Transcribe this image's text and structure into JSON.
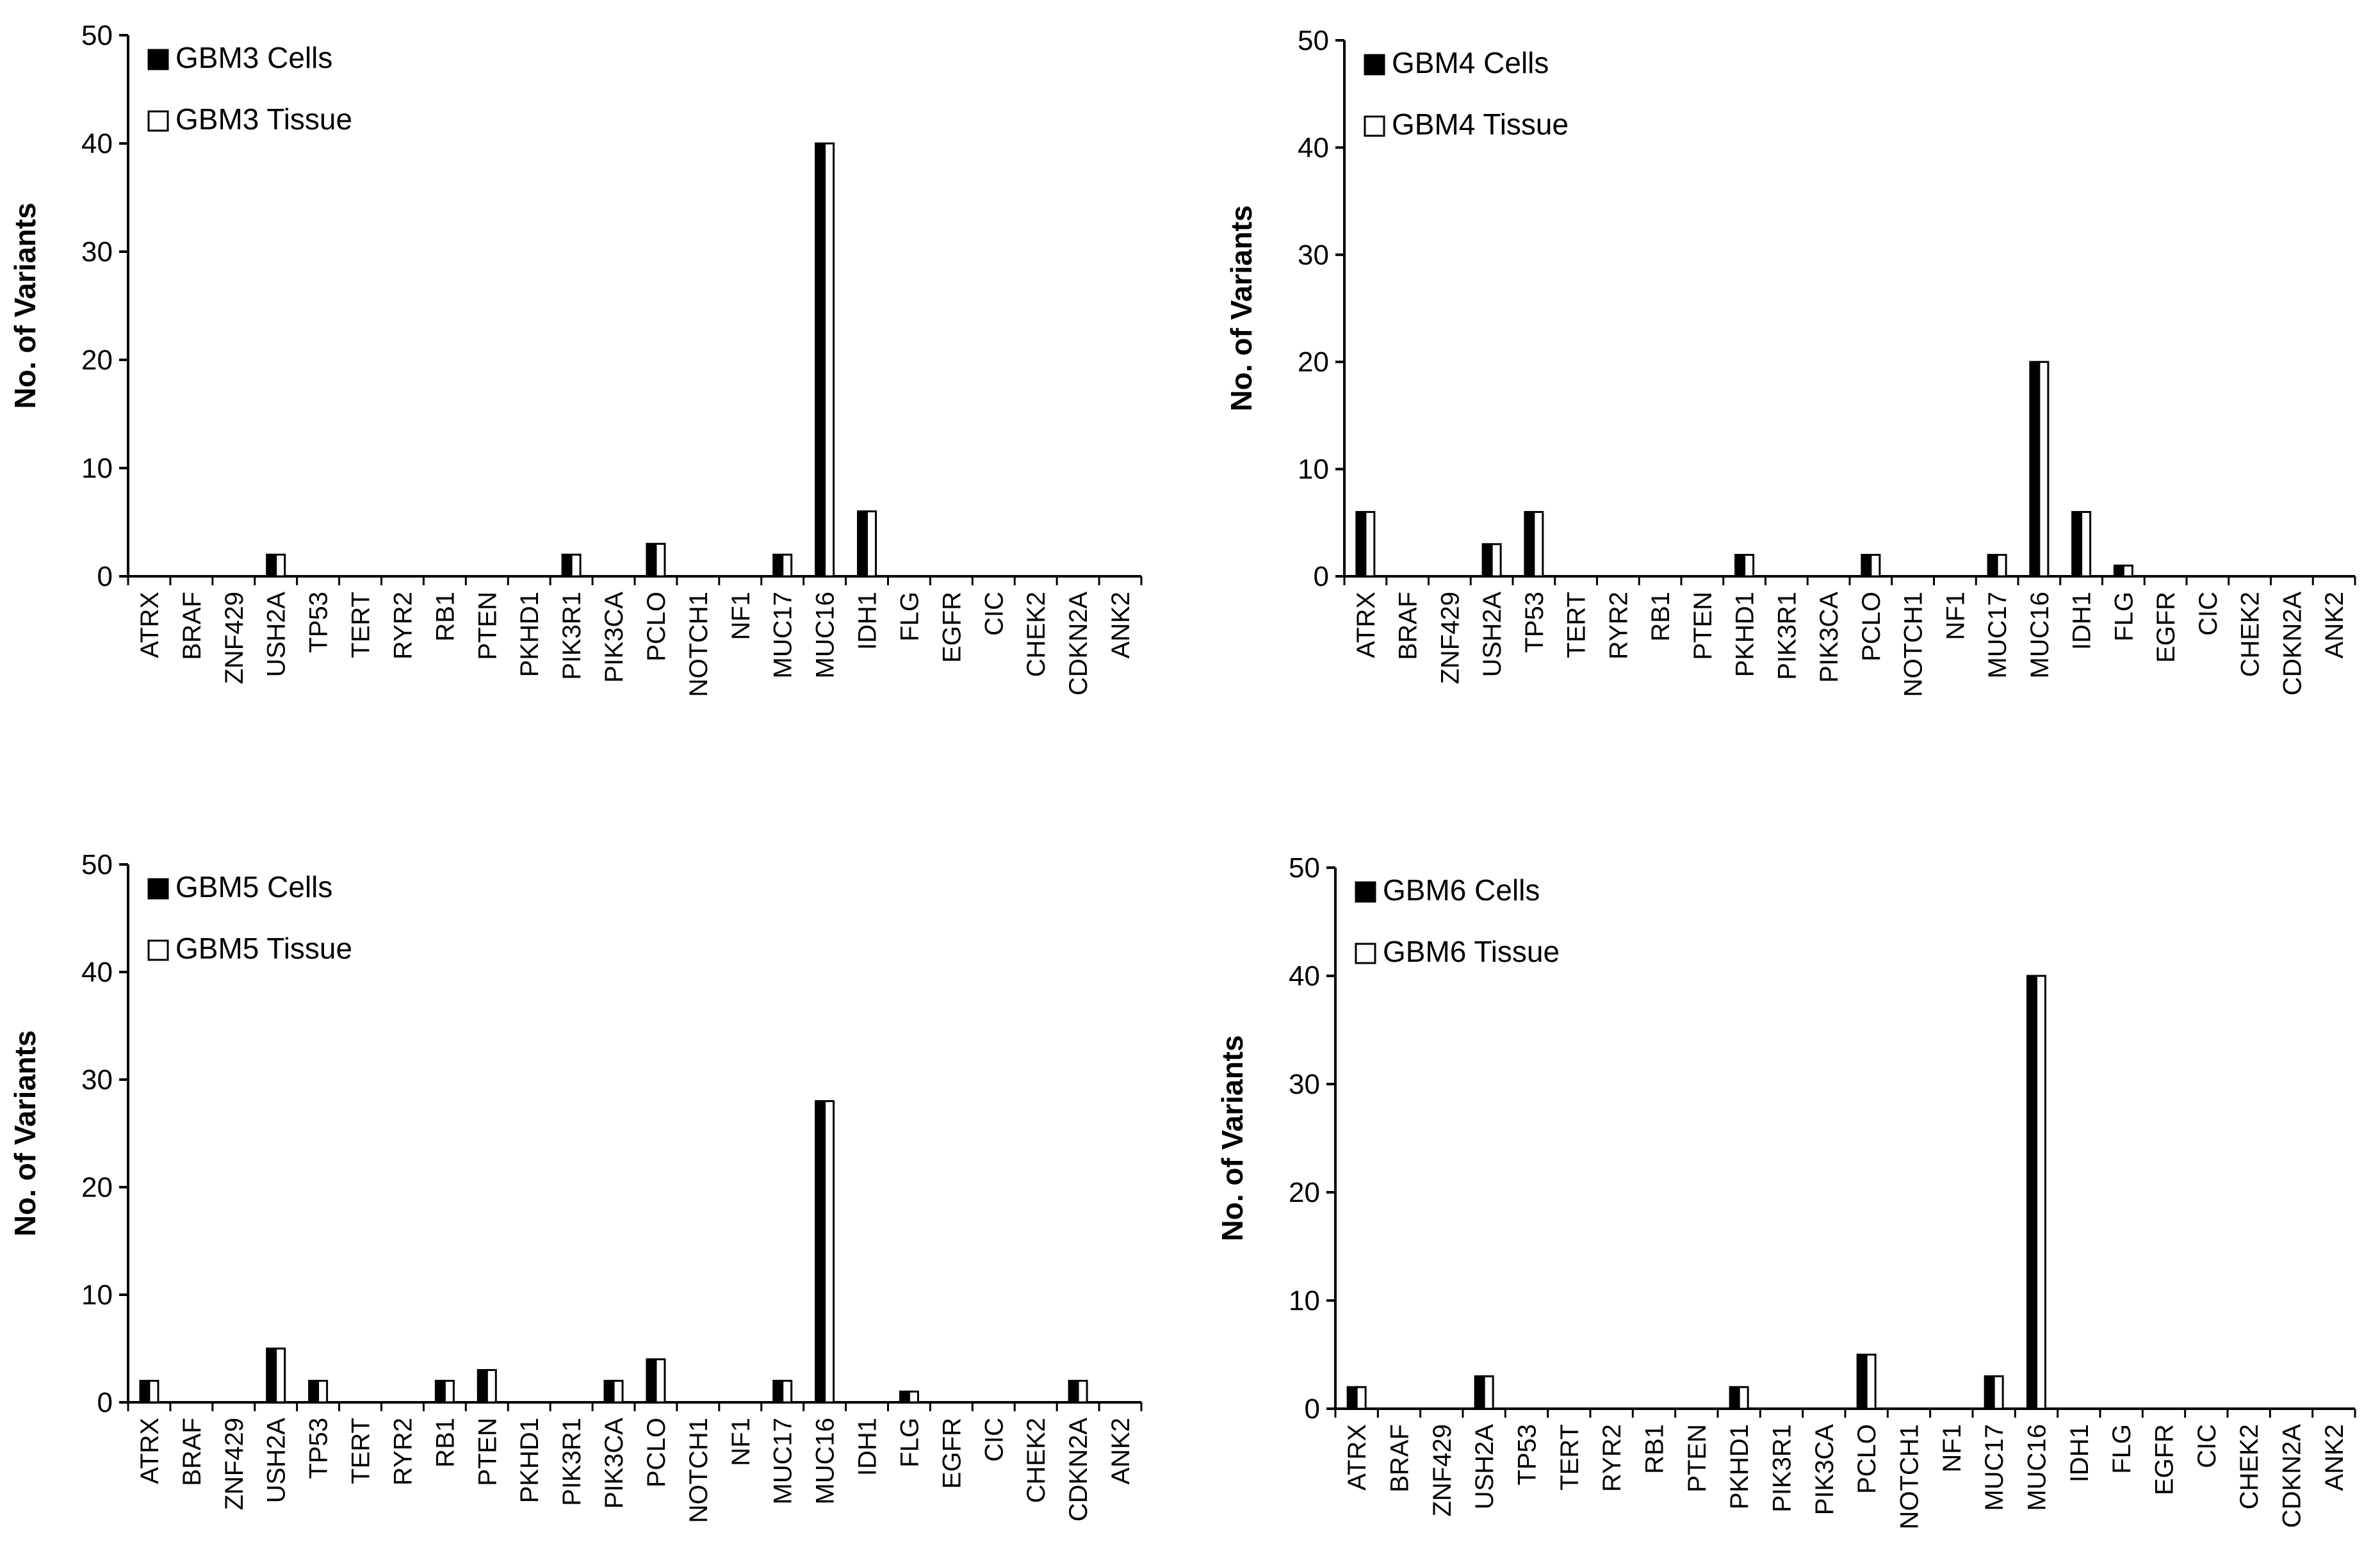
{
  "chart_data": [
    {
      "type": "bar",
      "title": "",
      "xlabel": "",
      "ylabel": "No. of Variants",
      "ylim": [
        0,
        50
      ],
      "yticks": [
        0,
        10,
        20,
        30,
        40,
        50
      ],
      "legend_position": "top-left",
      "categories": [
        "ATRX",
        "BRAF",
        "ZNF429",
        "USH2A",
        "TP53",
        "TERT",
        "RYR2",
        "RB1",
        "PTEN",
        "PKHD1",
        "PIK3R1",
        "PIK3CA",
        "PCLO",
        "NOTCH1",
        "NF1",
        "MUC17",
        "MUC16",
        "IDH1",
        "FLG",
        "EGFR",
        "CIC",
        "CHEK2",
        "CDKN2A",
        "ANK2"
      ],
      "series": [
        {
          "name": "GBM3 Cells",
          "color": "#000000",
          "values": [
            0,
            0,
            0,
            2,
            0,
            0,
            0,
            0,
            0,
            0,
            2,
            0,
            3,
            0,
            0,
            2,
            40,
            6,
            0,
            0,
            0,
            0,
            0,
            0
          ]
        },
        {
          "name": "GBM3 Tissue",
          "color": "#ffffff",
          "values": [
            0,
            0,
            0,
            2,
            0,
            0,
            0,
            0,
            0,
            0,
            2,
            0,
            3,
            0,
            0,
            2,
            40,
            6,
            0,
            0,
            0,
            0,
            0,
            0
          ]
        }
      ]
    },
    {
      "type": "bar",
      "title": "",
      "xlabel": "",
      "ylabel": "No. of Variants",
      "ylim": [
        0,
        50
      ],
      "yticks": [
        0,
        10,
        20,
        30,
        40,
        50
      ],
      "legend_position": "top-left",
      "categories": [
        "ATRX",
        "BRAF",
        "ZNF429",
        "USH2A",
        "TP53",
        "TERT",
        "RYR2",
        "RB1",
        "PTEN",
        "PKHD1",
        "PIK3R1",
        "PIK3CA",
        "PCLO",
        "NOTCH1",
        "NF1",
        "MUC17",
        "MUC16",
        "IDH1",
        "FLG",
        "EGFR",
        "CIC",
        "CHEK2",
        "CDKN2A",
        "ANK2"
      ],
      "series": [
        {
          "name": "GBM4 Cells",
          "color": "#000000",
          "values": [
            6,
            0,
            0,
            3,
            6,
            0,
            0,
            0,
            0,
            2,
            0,
            0,
            2,
            0,
            0,
            2,
            20,
            6,
            1,
            0,
            0,
            0,
            0,
            0
          ]
        },
        {
          "name": "GBM4 Tissue",
          "color": "#ffffff",
          "values": [
            6,
            0,
            0,
            3,
            6,
            0,
            0,
            0,
            0,
            2,
            0,
            0,
            2,
            0,
            0,
            2,
            20,
            6,
            1,
            0,
            0,
            0,
            0,
            0
          ]
        }
      ]
    },
    {
      "type": "bar",
      "title": "",
      "xlabel": "",
      "ylabel": "No. of Variants",
      "ylim": [
        0,
        50
      ],
      "yticks": [
        0,
        10,
        20,
        30,
        40,
        50
      ],
      "legend_position": "top-left",
      "categories": [
        "ATRX",
        "BRAF",
        "ZNF429",
        "USH2A",
        "TP53",
        "TERT",
        "RYR2",
        "RB1",
        "PTEN",
        "PKHD1",
        "PIK3R1",
        "PIK3CA",
        "PCLO",
        "NOTCH1",
        "NF1",
        "MUC17",
        "MUC16",
        "IDH1",
        "FLG",
        "EGFR",
        "CIC",
        "CHEK2",
        "CDKN2A",
        "ANK2"
      ],
      "series": [
        {
          "name": "GBM5 Cells",
          "color": "#000000",
          "values": [
            2,
            0,
            0,
            5,
            2,
            0,
            0,
            2,
            3,
            0,
            0,
            2,
            4,
            0,
            0,
            2,
            28,
            0,
            1,
            0,
            0,
            0,
            2,
            0
          ]
        },
        {
          "name": "GBM5 Tissue",
          "color": "#ffffff",
          "values": [
            2,
            0,
            0,
            5,
            2,
            0,
            0,
            2,
            3,
            0,
            0,
            2,
            4,
            0,
            0,
            2,
            28,
            0,
            1,
            0,
            0,
            0,
            2,
            0
          ]
        }
      ]
    },
    {
      "type": "bar",
      "title": "",
      "xlabel": "",
      "ylabel": "No. of Variants",
      "ylim": [
        0,
        50
      ],
      "yticks": [
        0,
        10,
        20,
        30,
        40,
        50
      ],
      "legend_position": "top-left",
      "categories": [
        "ATRX",
        "BRAF",
        "ZNF429",
        "USH2A",
        "TP53",
        "TERT",
        "RYR2",
        "RB1",
        "PTEN",
        "PKHD1",
        "PIK3R1",
        "PIK3CA",
        "PCLO",
        "NOTCH1",
        "NF1",
        "MUC17",
        "MUC16",
        "IDH1",
        "FLG",
        "EGFR",
        "CIC",
        "CHEK2",
        "CDKN2A",
        "ANK2"
      ],
      "series": [
        {
          "name": "GBM6 Cells",
          "color": "#000000",
          "values": [
            2,
            0,
            0,
            3,
            0,
            0,
            0,
            0,
            0,
            2,
            0,
            0,
            5,
            0,
            0,
            3,
            40,
            0,
            0,
            0,
            0,
            0,
            0,
            0
          ]
        },
        {
          "name": "GBM6 Tissue",
          "color": "#ffffff",
          "values": [
            2,
            0,
            0,
            3,
            0,
            0,
            0,
            0,
            0,
            2,
            0,
            0,
            5,
            0,
            0,
            3,
            40,
            0,
            0,
            0,
            0,
            0,
            0,
            0
          ]
        }
      ]
    }
  ]
}
